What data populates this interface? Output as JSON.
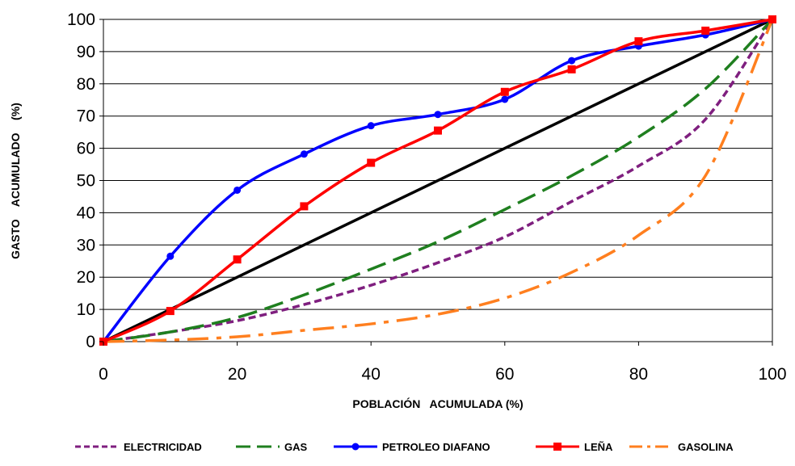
{
  "chart_data": {
    "type": "line",
    "xlabel": "POBLACIÓN   ACUMULADA (%)",
    "ylabel": "GASTO    ACUMULADO    (%)",
    "xlim": [
      0,
      100
    ],
    "ylim": [
      0,
      100
    ],
    "x_ticks": [
      "0",
      "20",
      "40",
      "60",
      "80",
      "100"
    ],
    "y_ticks": [
      "0",
      "10",
      "20",
      "30",
      "40",
      "50",
      "60",
      "70",
      "80",
      "90",
      "100"
    ],
    "grid": "horizontal",
    "legend_position": "bottom",
    "equality_line": {
      "x": [
        0,
        100
      ],
      "y": [
        0,
        100
      ],
      "color": "#000000"
    },
    "series": [
      {
        "name": "ELECTRICIDAD",
        "color": "#7f1f7f",
        "dash": "short-dash",
        "marker": "none",
        "x": [
          0,
          10,
          20,
          30,
          40,
          50,
          60,
          70,
          80,
          90,
          100
        ],
        "y": [
          0,
          3,
          6.5,
          11.5,
          17.5,
          24.5,
          32.5,
          43.5,
          54.5,
          69,
          100
        ]
      },
      {
        "name": "GAS",
        "color": "#1f7f1f",
        "dash": "long-dash",
        "marker": "none",
        "x": [
          0,
          10,
          20,
          30,
          40,
          50,
          60,
          70,
          80,
          90,
          100
        ],
        "y": [
          0,
          3,
          7.5,
          14.5,
          22.5,
          31,
          41,
          51.5,
          63.5,
          78.5,
          100
        ]
      },
      {
        "name": "PETROLEO DIAFANO",
        "color": "#0000ff",
        "dash": "solid",
        "marker": "circle",
        "x": [
          0,
          10,
          20,
          30,
          40,
          50,
          60,
          70,
          80,
          90,
          100
        ],
        "y": [
          0,
          26.5,
          47,
          58.2,
          67,
          70.5,
          75.2,
          87.2,
          91.7,
          95.2,
          100
        ]
      },
      {
        "name": "LEÑA",
        "color": "#ff0000",
        "dash": "solid",
        "marker": "square",
        "x": [
          0,
          10,
          20,
          30,
          40,
          50,
          60,
          70,
          80,
          90,
          100
        ],
        "y": [
          0,
          9.5,
          25.5,
          42,
          55.5,
          65.5,
          77.5,
          84.5,
          93.2,
          96.5,
          100
        ]
      },
      {
        "name": "GASOLINA",
        "color": "#ff7f1f",
        "dash": "dash-dot",
        "marker": "none",
        "x": [
          0,
          10,
          20,
          30,
          40,
          50,
          60,
          70,
          80,
          90,
          100
        ],
        "y": [
          0,
          0.5,
          1.5,
          3.5,
          5.5,
          8.5,
          13.5,
          21.5,
          33,
          51.5,
          100
        ]
      }
    ]
  }
}
